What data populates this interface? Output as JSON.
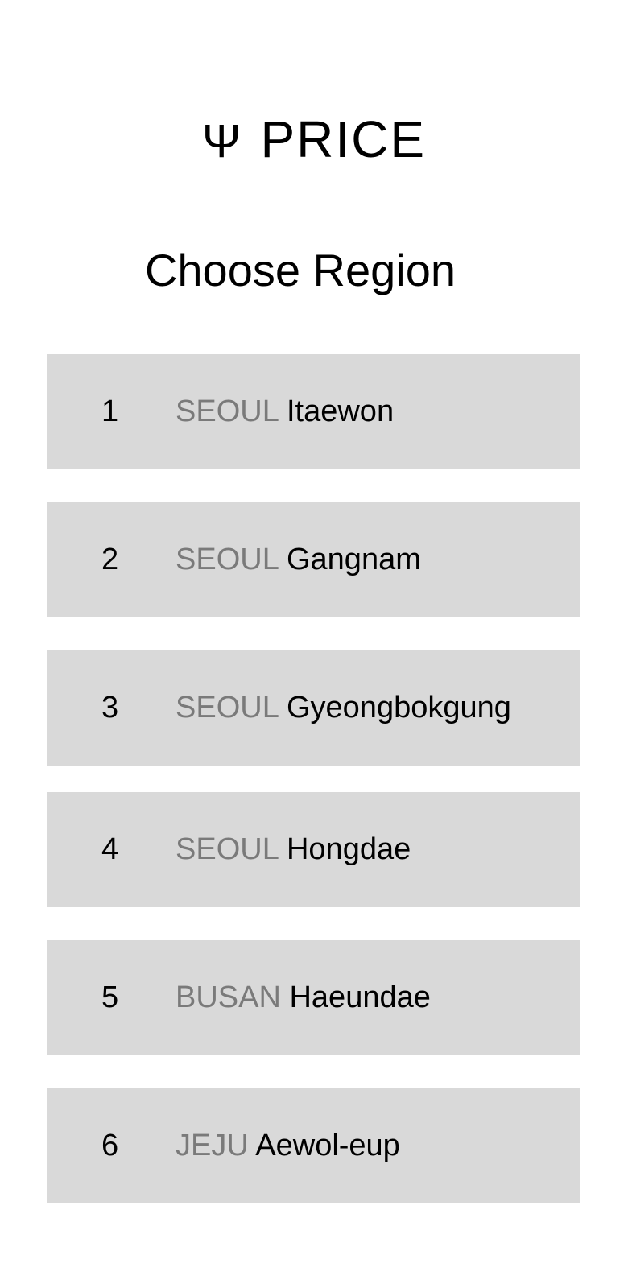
{
  "header": {
    "logo_icon": "Ψ",
    "logo_text": "PRICE",
    "title": "Choose Region"
  },
  "regions": [
    {
      "num": "1",
      "city": "SEOUL",
      "area": "Itaewon"
    },
    {
      "num": "2",
      "city": "SEOUL",
      "area": "Gangnam"
    },
    {
      "num": "3",
      "city": "SEOUL",
      "area": "Gyeongbokgung"
    },
    {
      "num": "4",
      "city": "SEOUL",
      "area": "Hongdae"
    },
    {
      "num": "5",
      "city": "BUSAN",
      "area": "Haeundae"
    },
    {
      "num": "6",
      "city": "JEJU",
      "area": "Aewol-eup"
    }
  ],
  "colors": {
    "item_bg": "#d9d9d9",
    "city_text": "#7a7a7a",
    "area_text": "#000000"
  }
}
